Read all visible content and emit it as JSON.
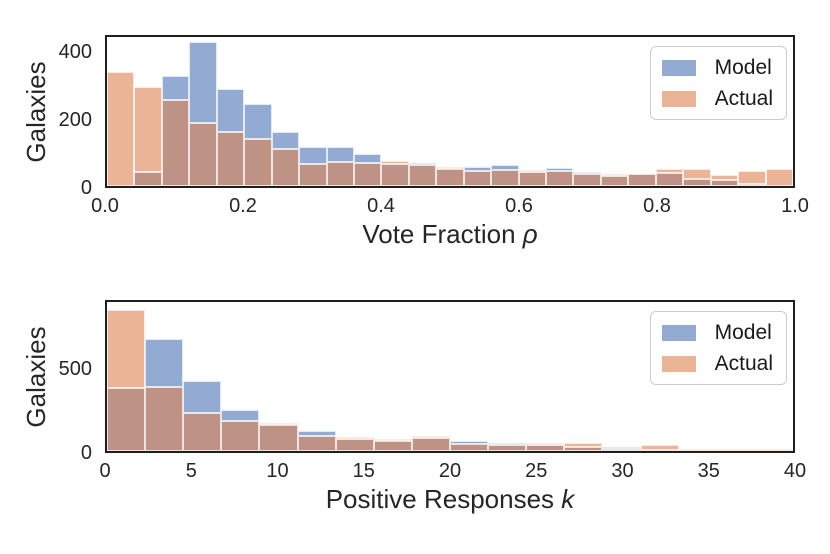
{
  "figure": {
    "background": "#ffffff",
    "colors": {
      "model": "#93aad3",
      "actual": "#ecb497",
      "overlap": "#bf9286",
      "spine": "#1f1f1f",
      "text": "#262626",
      "legend_border": "#cccccc"
    }
  },
  "chart_data": [
    {
      "type": "bar",
      "subtype": "overlaid-histogram",
      "title": "",
      "xlabel_text": "Vote Fraction ",
      "xlabel_var": "ρ",
      "ylabel": "Galaxies",
      "xlim": [
        0,
        1
      ],
      "ylim": [
        0,
        450
      ],
      "grid": false,
      "legend_position": "upper right",
      "n_bins": 25,
      "bin_start": 0,
      "bin_width": 0.04,
      "xticks": [
        0.0,
        0.2,
        0.4,
        0.6,
        0.8,
        1.0
      ],
      "xtick_labels": [
        "0.0",
        "0.2",
        "0.4",
        "0.6",
        "0.8",
        "1.0"
      ],
      "yticks": [
        0,
        200,
        400
      ],
      "ytick_labels": [
        "0",
        "200",
        "400"
      ],
      "series": [
        {
          "name": "Model",
          "color": "#93aad3",
          "values": [
            0,
            42,
            332,
            435,
            292,
            249,
            162,
            118,
            117,
            96,
            68,
            69,
            50,
            57,
            64,
            43,
            53,
            43,
            30,
            36,
            40,
            20,
            18,
            6,
            0
          ]
        },
        {
          "name": "Actual",
          "color": "#ecb497",
          "values": [
            345,
            300,
            261,
            191,
            162,
            142,
            111,
            66,
            73,
            71,
            76,
            63,
            52,
            45,
            49,
            45,
            44,
            35,
            31,
            36,
            50,
            52,
            34,
            45,
            52
          ]
        }
      ]
    },
    {
      "type": "bar",
      "subtype": "overlaid-histogram",
      "title": "",
      "xlabel_text": "Positive Responses ",
      "xlabel_var": "k",
      "ylabel": "Galaxies",
      "xlim": [
        0,
        40
      ],
      "ylim": [
        0,
        915
      ],
      "grid": false,
      "legend_position": "upper right",
      "n_bins": 18,
      "bin_start": 0,
      "bin_width": 2.2222,
      "xticks": [
        0,
        5,
        10,
        15,
        20,
        25,
        30,
        35,
        40
      ],
      "xtick_labels": [
        "0",
        "5",
        "10",
        "15",
        "20",
        "25",
        "30",
        "35",
        "40"
      ],
      "yticks": [
        0,
        500
      ],
      "ytick_labels": [
        "0",
        "500"
      ],
      "series": [
        {
          "name": "Model",
          "color": "#93aad3",
          "values": [
            388,
            685,
            433,
            253,
            160,
            125,
            72,
            64,
            80,
            60,
            48,
            34,
            25,
            18,
            4,
            2,
            2,
            0
          ]
        },
        {
          "name": "Actual",
          "color": "#ecb497",
          "values": [
            865,
            392,
            232,
            187,
            167,
            90,
            78,
            68,
            90,
            42,
            36,
            38,
            48,
            15,
            40,
            9,
            9,
            2
          ]
        }
      ]
    }
  ]
}
